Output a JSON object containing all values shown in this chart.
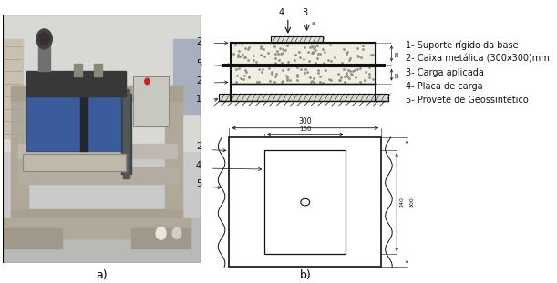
{
  "caption_a": "a)",
  "caption_b": "b)",
  "legend_items": [
    "1- Suporte rígido da base",
    "2- Caixa metálica (300x300)mm",
    "3- Carga aplicada",
    "4- Placa de carga",
    "5- Provete de Geossintético"
  ],
  "bg_color": "#ffffff",
  "text_color": "#222222",
  "font_size_caption": 9,
  "font_size_legend": 7.0,
  "font_size_labels": 7.0,
  "font_size_dim": 5.5,
  "lc": "#111111",
  "lw": 0.8
}
